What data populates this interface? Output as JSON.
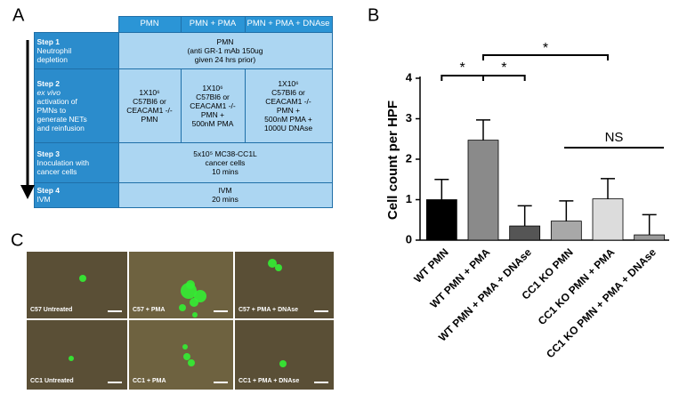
{
  "panel_letters": [
    "A",
    "B",
    "C"
  ],
  "table": {
    "header": [
      "PMN",
      "PMN + PMA",
      "PMN + PMA + DNAse"
    ],
    "rows": [
      {
        "step": "Step 1",
        "desc": [
          "Neutrophil",
          "depletion"
        ],
        "cells": [
          [
            "PMN",
            "(anti GR-1 mAb 150ug",
            "given 24 hrs prior)"
          ]
        ]
      },
      {
        "step": "Step 2",
        "desc": [
          "ex vivo",
          "activation of",
          "PMNs to",
          "generate NETs",
          "and reinfusion"
        ],
        "cells": [
          [
            "1X10⁶",
            "C57Bl6 or",
            "CEACAM1 -/-",
            "PMN"
          ],
          [
            "1X10⁶",
            "C57Bl6 or",
            "CEACAM1 -/-",
            "PMN +",
            "500nM PMA"
          ],
          [
            "1X10⁶",
            "C57Bl6 or",
            "CEACAM1 -/-",
            "PMN +",
            "500nM PMA +",
            "1000U DNAse"
          ]
        ]
      },
      {
        "step": "Step 3",
        "desc": [
          "Inoculation with",
          "cancer cells"
        ],
        "cells": [
          [
            "5x10⁵ MC38-CC1L",
            "cancer cells",
            "10 mins"
          ]
        ]
      },
      {
        "step": "Step 4",
        "desc": [
          "IVM"
        ],
        "cells": [
          [
            "IVM",
            "20 mins"
          ]
        ]
      }
    ]
  },
  "chart_data": {
    "type": "bar",
    "y_label": "Cell count per HPF",
    "categories": [
      "WT PMN",
      "WT PMN + PMA",
      "WT PMN + PMA + DNAse",
      "CC1 KO PMN",
      "CC1 KO PMN + PMA",
      "CC1 KO PMN + PMA + DNAse"
    ],
    "values": [
      1.0,
      2.47,
      0.35,
      0.47,
      1.02,
      0.13
    ],
    "errors": [
      0.5,
      0.5,
      0.5,
      0.5,
      0.5,
      0.5
    ],
    "colors": [
      "#000000",
      "#8a8a8a",
      "#555555",
      "#a8a8a8",
      "#dcdcdc",
      "#9a9a9a"
    ],
    "ylim": [
      0,
      4
    ],
    "yticks": [
      0,
      1,
      2,
      3,
      4
    ],
    "annotations": [
      "*",
      "*",
      "*",
      "NS"
    ]
  },
  "images": [
    "C57 Untreated",
    "C57 + PMA",
    "C57 + PMA + DNAse",
    "CC1 Untreated",
    "CC1 + PMA",
    "CC1 + PMA + DNAse"
  ]
}
